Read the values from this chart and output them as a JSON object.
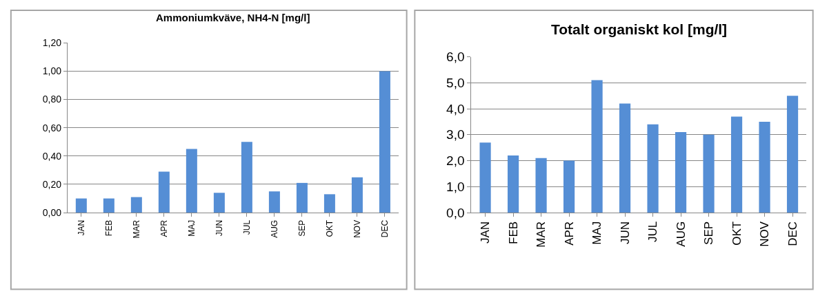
{
  "chart_data": [
    {
      "type": "bar",
      "title": "Ammoniumkväve, NH4-N [mg/l]",
      "categories": [
        "JAN",
        "FEB",
        "MAR",
        "APR",
        "MAJ",
        "JUN",
        "JUL",
        "AUG",
        "SEP",
        "OKT",
        "NOV",
        "DEC"
      ],
      "values": [
        0.1,
        0.1,
        0.11,
        0.29,
        0.45,
        0.14,
        0.5,
        0.15,
        0.21,
        0.13,
        0.25,
        1.0
      ],
      "color": "#558ed5",
      "ylim": [
        0,
        1.2
      ],
      "yticks": [
        {
          "value": 0,
          "label": "0,00"
        },
        {
          "value": 0.2,
          "label": "0,20"
        },
        {
          "value": 0.4,
          "label": "0,40"
        },
        {
          "value": 0.6,
          "label": "0,60"
        },
        {
          "value": 0.8,
          "label": "0,80"
        },
        {
          "value": 1.0,
          "label": "1,00"
        },
        {
          "value": 1.2,
          "label": "1,20"
        }
      ],
      "grid": "y"
    },
    {
      "type": "bar",
      "title": "Totalt organiskt kol [mg/l]",
      "categories": [
        "JAN",
        "FEB",
        "MAR",
        "APR",
        "MAJ",
        "JUN",
        "JUL",
        "AUG",
        "SEP",
        "OKT",
        "NOV",
        "DEC"
      ],
      "values": [
        2.7,
        2.2,
        2.1,
        2.0,
        5.1,
        4.2,
        3.4,
        3.1,
        3.0,
        3.7,
        3.5,
        4.5
      ],
      "color": "#558ed5",
      "ylim": [
        0,
        6
      ],
      "yticks": [
        {
          "value": 0,
          "label": "0,0"
        },
        {
          "value": 1,
          "label": "1,0"
        },
        {
          "value": 2,
          "label": "2,0"
        },
        {
          "value": 3,
          "label": "3,0"
        },
        {
          "value": 4,
          "label": "4,0"
        },
        {
          "value": 5,
          "label": "5,0"
        },
        {
          "value": 6,
          "label": "6,0"
        }
      ],
      "grid": "y"
    }
  ]
}
